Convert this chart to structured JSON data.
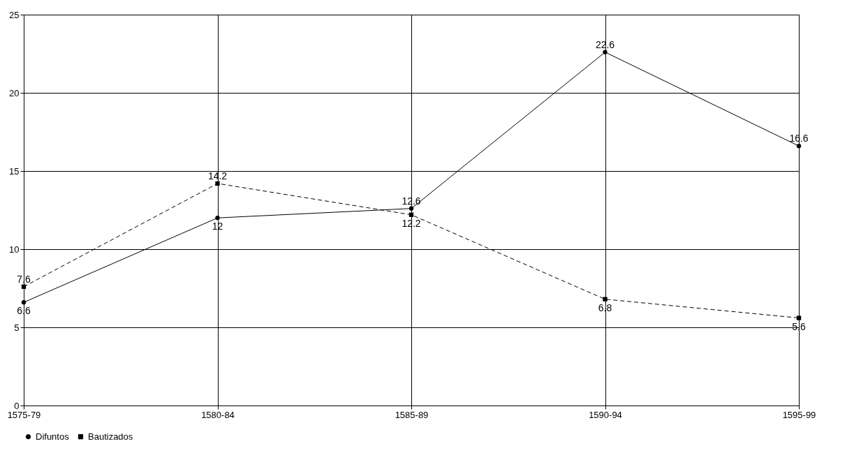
{
  "chart_data": {
    "type": "line",
    "categories": [
      "1575-79",
      "1580-84",
      "1585-89",
      "1590-94",
      "1595-99"
    ],
    "series": [
      {
        "name": "Difuntos",
        "color": "#000000",
        "marker": "circle",
        "line_style": "solid",
        "values": [
          6.6,
          12,
          12.6,
          22.6,
          16.6
        ]
      },
      {
        "name": "Bautizados",
        "color": "#000000",
        "marker": "square",
        "line_style": "dashed",
        "values": [
          7.6,
          14.2,
          12.2,
          6.8,
          5.6
        ]
      }
    ],
    "ylim": [
      0,
      25
    ],
    "yticks": [
      0,
      5,
      10,
      15,
      20,
      25
    ],
    "grid": true,
    "legend": "bottom",
    "data_labels": true
  }
}
